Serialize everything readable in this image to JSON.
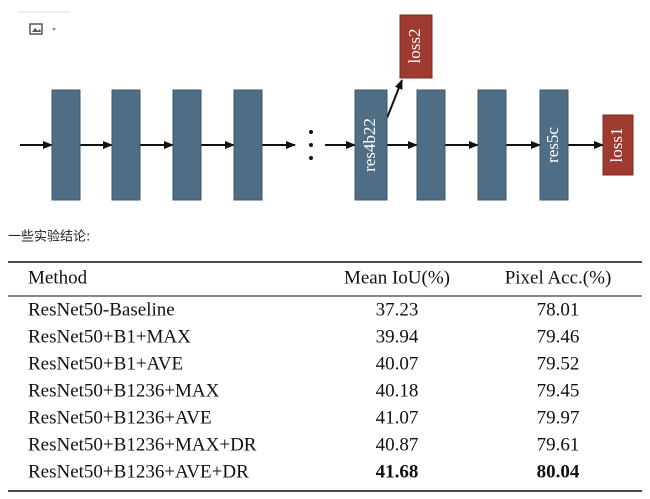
{
  "diagram": {
    "blocks": [
      "res4b22",
      "res5c"
    ],
    "losses": [
      "loss2",
      "loss1"
    ]
  },
  "caption": "一些实验结论:",
  "table": {
    "header": [
      "Method",
      "Mean IoU(%)",
      "Pixel Acc.(%)"
    ],
    "rows": [
      [
        "ResNet50-Baseline",
        37.23,
        78.01
      ],
      [
        "ResNet50+B1+MAX",
        39.94,
        79.46
      ],
      [
        "ResNet50+B1+AVE",
        40.07,
        79.52
      ],
      [
        "ResNet50+B1236+MAX",
        40.18,
        79.45
      ],
      [
        "ResNet50+B1236+AVE",
        41.07,
        79.97
      ],
      [
        "ResNet50+B1236+MAX+DR",
        40.87,
        79.61
      ],
      [
        "ResNet50+B1236+AVE+DR",
        41.68,
        80.04
      ]
    ]
  }
}
